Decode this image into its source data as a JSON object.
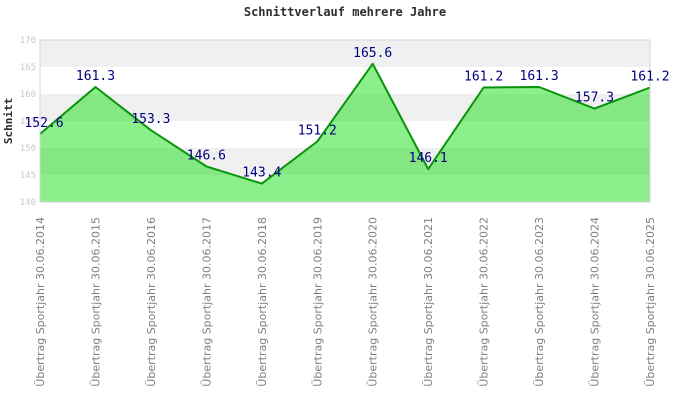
{
  "header": {
    "title": "Schnittverlauf mehrere Jahre"
  },
  "chart_data": {
    "type": "area",
    "title": "Schnittverlauf mehrere Jahre",
    "xlabel": "",
    "ylabel": "Schnitt",
    "series_name": "Schnitt",
    "categories": [
      "Übertrag Sportjahr 30.06.2014",
      "Übertrag Sportjahr 30.06.2015",
      "Übertrag Sportjahr 30.06.2016",
      "Übertrag Sportjahr 30.06.2017",
      "Übertrag Sportjahr 30.06.2018",
      "Übertrag Sportjahr 30.06.2019",
      "Übertrag Sportjahr 30.06.2020",
      "Übertrag Sportjahr 30.06.2021",
      "Übertrag Sportjahr 30.06.2022",
      "Übertrag Sportjahr 30.06.2023",
      "Übertrag Sportjahr 30.06.2024",
      "Übertrag Sportjahr 30.06.2025"
    ],
    "values": [
      152.6,
      161.3,
      153.3,
      146.6,
      143.4,
      151.2,
      165.6,
      146.1,
      161.2,
      161.3,
      157.3,
      161.2
    ],
    "value_labels": [
      "152.6",
      "161.3",
      "153.3",
      "146.6",
      "143.4",
      "151.2",
      "165.6",
      "146.1",
      "161.2",
      "161.3",
      "157.3",
      "161.2"
    ],
    "ylim": [
      140,
      170
    ],
    "yticks": [
      170,
      165,
      160,
      155,
      150,
      145,
      140
    ],
    "grid": "alternating-horizontal-bands",
    "legend_position": "none",
    "colors": {
      "line": "#089408",
      "area_fill": "#00dc00",
      "area_fill_opacity": 0.45,
      "data_label": "#000080",
      "band_dark": "#f0f0f0",
      "band_light": "#ffffff",
      "plot_border": "#d4d4d4",
      "ytick_text": "#c8c8c8",
      "xtick_text": "#808080",
      "title_text": "#2e2e2e",
      "background": "#ffffff"
    }
  }
}
